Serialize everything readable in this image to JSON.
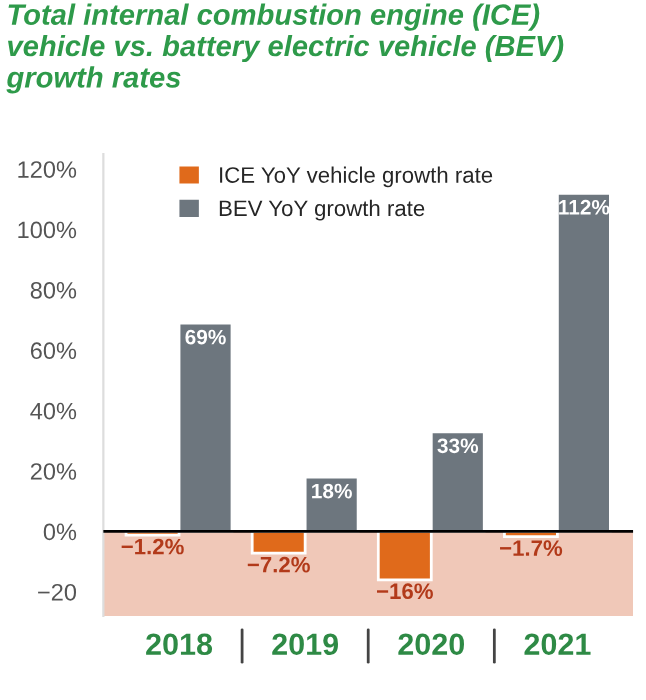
{
  "chart_data": {
    "type": "bar",
    "title": "Total internal combustion engine (ICE) vehicle vs. battery electric vehicle (BEV) growth rates",
    "categories": [
      "2018",
      "2019",
      "2020",
      "2021"
    ],
    "series": [
      {
        "name": "ICE YoY vehicle growth rate",
        "color": "#e06a1b",
        "values": [
          -1.2,
          -7.2,
          -16,
          -1.7
        ],
        "value_labels": [
          "−1.2%",
          "−7.2%",
          "−16%",
          "−1.7%"
        ]
      },
      {
        "name": "BEV YoY growth rate",
        "color": "#6d767e",
        "values": [
          69,
          18,
          33,
          112
        ],
        "value_labels": [
          "69%",
          "18%",
          "33%",
          "112%"
        ]
      }
    ],
    "ylim": [
      -28,
      125
    ],
    "yticks": [
      {
        "value": -20,
        "label": "−20"
      },
      {
        "value": 0,
        "label": "0%"
      },
      {
        "value": 20,
        "label": "20%"
      },
      {
        "value": 40,
        "label": "40%"
      },
      {
        "value": 60,
        "label": "60%"
      },
      {
        "value": 80,
        "label": "80%"
      },
      {
        "value": 100,
        "label": "100%"
      },
      {
        "value": 120,
        "label": "120%"
      }
    ],
    "bands": [
      {
        "axis": "y",
        "from": -28,
        "to": 0,
        "color": "#f0c8b8"
      }
    ],
    "ref_lines": [
      {
        "axis": "y",
        "value": 0,
        "color": "#000000"
      }
    ],
    "legend": "top left",
    "grid": false
  }
}
